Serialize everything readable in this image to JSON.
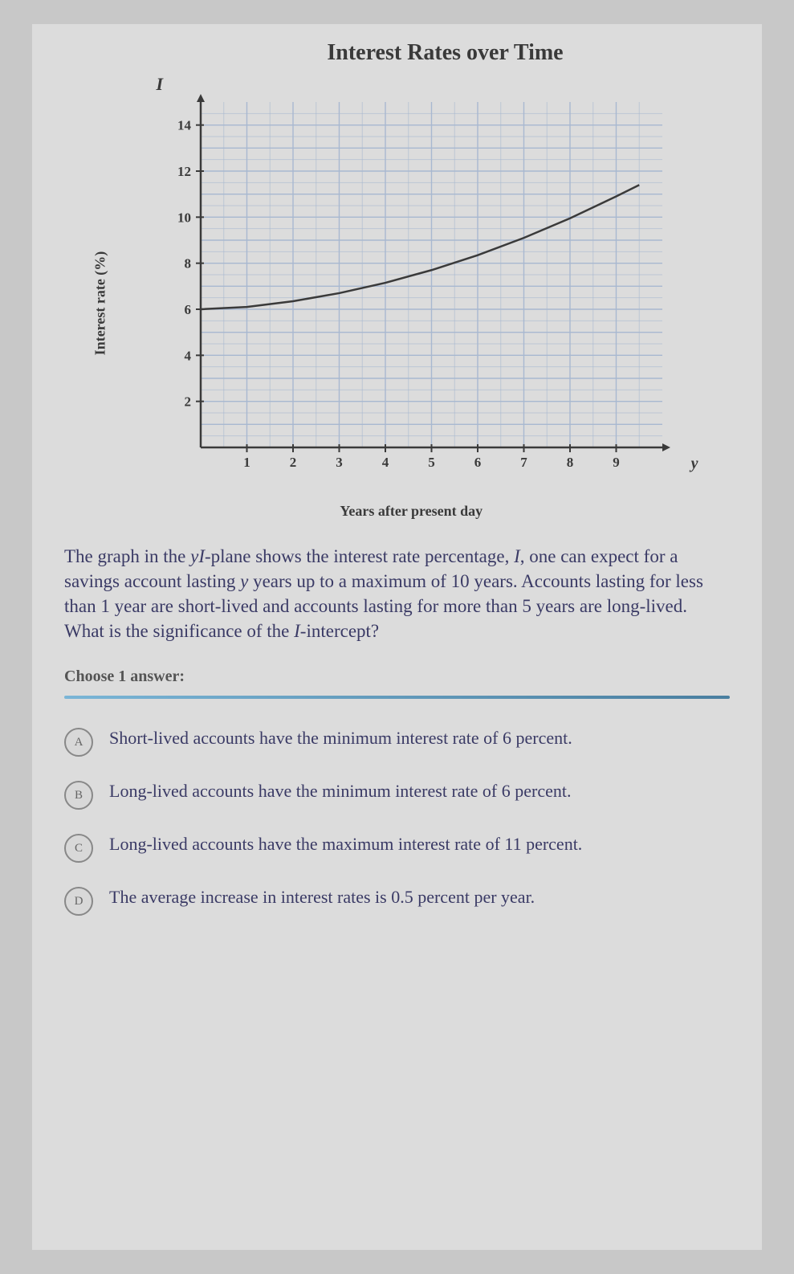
{
  "chart": {
    "title": "Interest Rates over Time",
    "y_axis_label": "Interest rate (%)",
    "x_axis_label": "Years after present day",
    "I_label": "I",
    "y_end_label": "y",
    "grid_color": "#a8b8d0",
    "axis_color": "#3a3a3a",
    "curve_color": "#3a3a3a",
    "background_color": "#dcdcdc",
    "x_ticks": [
      1,
      2,
      3,
      4,
      5,
      6,
      7,
      8,
      9
    ],
    "y_ticks": [
      2,
      4,
      6,
      8,
      10,
      12,
      14
    ],
    "xlim": [
      0,
      10
    ],
    "ylim": [
      0,
      15
    ],
    "curve_points": [
      {
        "x": 0,
        "y": 6.0
      },
      {
        "x": 1,
        "y": 6.1
      },
      {
        "x": 2,
        "y": 6.35
      },
      {
        "x": 3,
        "y": 6.7
      },
      {
        "x": 4,
        "y": 7.15
      },
      {
        "x": 5,
        "y": 7.7
      },
      {
        "x": 6,
        "y": 8.35
      },
      {
        "x": 7,
        "y": 9.1
      },
      {
        "x": 8,
        "y": 9.95
      },
      {
        "x": 9,
        "y": 10.9
      },
      {
        "x": 9.5,
        "y": 11.4
      }
    ]
  },
  "question": {
    "text_1": "The graph in the ",
    "var_1": "yI",
    "text_2": "-plane shows the interest rate percentage, ",
    "var_2": "I",
    "text_3": ", one can expect for a savings account lasting ",
    "var_3": "y",
    "text_4": " years up to a maximum of ",
    "num_1": "10",
    "text_5": " years. Accounts lasting for less than ",
    "num_2": "1",
    "text_6": " year are short-lived and accounts lasting for more than ",
    "num_3": "5",
    "text_7": " years are long-lived. What is the significance of the ",
    "var_4": "I",
    "text_8": "-intercept?"
  },
  "choose_label": "Choose 1 answer:",
  "answers": [
    {
      "letter": "A",
      "text": "Short-lived accounts have the minimum interest rate of 6 percent."
    },
    {
      "letter": "B",
      "text": "Long-lived accounts have the minimum interest rate of 6 percent."
    },
    {
      "letter": "C",
      "text": "Long-lived accounts have the maximum interest rate of 11 percent."
    },
    {
      "letter": "D",
      "text": "The average increase in interest rates is 0.5 percent per year."
    }
  ]
}
